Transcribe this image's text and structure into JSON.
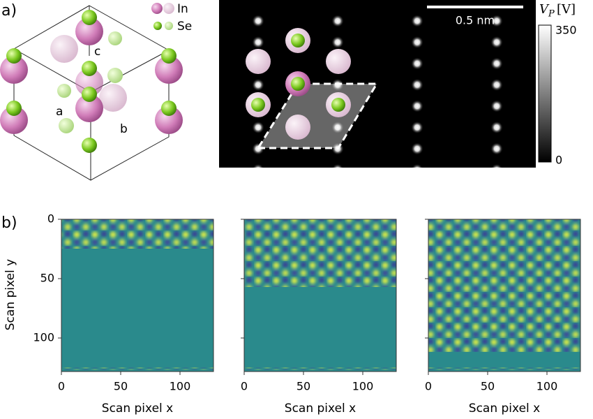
{
  "panel_a": {
    "label": "a)",
    "legend": [
      "In",
      "Se"
    ],
    "crystal_axes": [
      "a",
      "b",
      "c"
    ],
    "scale_bar": "0.5 nm",
    "colorbar": {
      "symbol": "V",
      "subscript": "P",
      "unit": "[V]",
      "ticks": [
        "350",
        "0"
      ]
    }
  },
  "panel_b": {
    "label": "b)",
    "y_label": "Scan pixel y",
    "yticks": [
      0,
      50,
      100
    ],
    "plots": [
      {
        "x_label": "Scan pixel x",
        "xticks": [
          0,
          50,
          100
        ]
      },
      {
        "x_label": "Scan pixel x",
        "xticks": [
          0,
          50,
          100
        ]
      },
      {
        "x_label": "Scan pixel x",
        "xticks": [
          0,
          50,
          100
        ]
      }
    ]
  }
}
